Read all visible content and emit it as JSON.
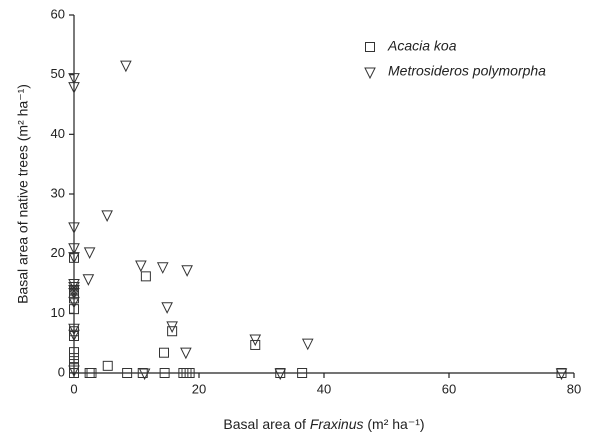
{
  "chart_data": {
    "type": "scatter",
    "xlabel": [
      "Basal area of ",
      "Fraxinus",
      " (m² ha⁻¹)"
    ],
    "ylabel": "Basal area of native trees (m² ha⁻¹)",
    "xlim": [
      0,
      80
    ],
    "xticks": [
      0,
      20,
      40,
      60,
      80
    ],
    "ylim": [
      0,
      60
    ],
    "yticks": [
      0,
      10,
      20,
      30,
      40,
      50,
      60
    ],
    "grid": false,
    "legend": "upper right",
    "series": [
      {
        "name": "Acacia koa",
        "marker": "square",
        "color": "#333333",
        "x": [
          0,
          0,
          0,
          0,
          0,
          0,
          0,
          0,
          0,
          0,
          0,
          0,
          2.5,
          2.8,
          5.4,
          8.5,
          11,
          11.5,
          14.4,
          14.5,
          15.7,
          17.5,
          18,
          18.5,
          29,
          33,
          36.5,
          78
        ],
        "values": [
          19.3,
          13.8,
          13.2,
          12.5,
          10.7,
          7.0,
          6.2,
          3.5,
          2.5,
          1.5,
          0.8,
          0,
          0,
          0,
          1.2,
          0,
          0,
          16.2,
          3.4,
          0,
          7.0,
          0,
          0,
          0,
          4.7,
          0,
          0,
          0
        ]
      },
      {
        "name": "Metrosideros polymorpha",
        "marker": "triangle-down",
        "color": "#333333",
        "x": [
          0,
          0,
          0,
          0,
          0,
          0,
          0,
          0,
          0,
          0,
          0,
          0,
          0,
          2.5,
          2.3,
          5.3,
          8.3,
          10.7,
          11.3,
          14.2,
          14.9,
          15.7,
          18.1,
          17.9,
          29,
          33,
          37.4,
          78
        ],
        "values": [
          49.5,
          48,
          24.5,
          21,
          19.5,
          15,
          14.5,
          14,
          13.5,
          12,
          7.5,
          6.5,
          0.5,
          20.3,
          15.8,
          26.5,
          51.6,
          18.1,
          0,
          17.8,
          11.1,
          7.9,
          17.3,
          3.5,
          5.7,
          0,
          5.0,
          0
        ]
      }
    ]
  }
}
